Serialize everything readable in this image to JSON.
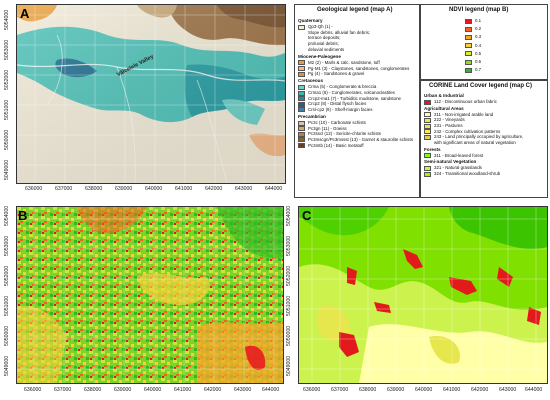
{
  "panels": {
    "a_letter": "A",
    "b_letter": "B",
    "c_letter": "C",
    "valley_label": "Vâlcelele Valley"
  },
  "axes": {
    "x_ticks": [
      "636000",
      "637000",
      "638000",
      "639000",
      "640000",
      "641000",
      "642000",
      "643000",
      "644000"
    ],
    "y_ticks": [
      "5049000",
      "5050000",
      "5051000",
      "5052000",
      "5053000",
      "5054000"
    ]
  },
  "geo_legend": {
    "title": "Geological legend (map A)",
    "sections": [
      {
        "name": "Quaternary",
        "items": [
          {
            "color": "#f5ebd6",
            "label": "Qp3-Qh (1) -"
          },
          {
            "color": "",
            "label": "Slope debris, alluvial fan debris;"
          },
          {
            "color": "",
            "label": "terrace deposits;"
          },
          {
            "color": "",
            "label": "proluvial debris;"
          },
          {
            "color": "",
            "label": "deluvial sediments"
          }
        ]
      },
      {
        "name": "Miocene-Paleogene",
        "items": [
          {
            "color": "#e8a03c",
            "label": "M2 (2) - Marls & calc. sandstone, tuff"
          },
          {
            "color": "#f2b98a",
            "label": "Pg-M1 (3) - Claystones, sandstones, conglomerates"
          },
          {
            "color": "#e8903a",
            "label": "Pg (4) - Sandstones & gravel"
          }
        ]
      },
      {
        "name": "Cretaceous",
        "items": [
          {
            "color": "#6fd0c8",
            "label": "Crma (5) - Conglomerate & breccia"
          },
          {
            "color": "#3ab7b0",
            "label": "Crma1 (6) - Conglomerates, volcanoclastites"
          },
          {
            "color": "#1f8f9b",
            "label": "Crcp2-ma1 (7) - Turbiditic mudstone, sandstone"
          },
          {
            "color": "#2a5f8a",
            "label": "Crcp2 (8) - Distal flysch facies"
          },
          {
            "color": "#3d7fb0",
            "label": "Crsl-cp2 (9) - Shelf-margin facies"
          }
        ]
      },
      {
        "name": "Precambrian",
        "items": [
          {
            "color": "#d9c7a3",
            "label": "Pc3c (10) - Carbonate schists"
          },
          {
            "color": "#c8a97a",
            "label": "Pc3gn (11) - Gneiss"
          },
          {
            "color": "#b0834f",
            "label": "Pc3sscl (12) - Sericite-chlorite schists"
          },
          {
            "color": "#8a6036",
            "label": "Pc3mscgn/Pc3mssst (13) - Garnet & staurolite schists"
          },
          {
            "color": "#6b3f22",
            "label": "Pc3mtb (14) - Basic metatuff"
          }
        ]
      }
    ]
  },
  "ndvi_legend": {
    "title": "NDVI legend (map B)",
    "items": [
      {
        "color": "#e8141e",
        "label": "0.1"
      },
      {
        "color": "#f2621f",
        "label": "0.2"
      },
      {
        "color": "#f7a428",
        "label": "0.3"
      },
      {
        "color": "#f5d23a",
        "label": "0.4"
      },
      {
        "color": "#d8ec3a",
        "label": "0.5"
      },
      {
        "color": "#8fdc2e",
        "label": "0.6"
      },
      {
        "color": "#2fba24",
        "label": "0.7"
      }
    ]
  },
  "corine_legend": {
    "title": "CORINE Land Cover legend (map C)",
    "sections": [
      {
        "name": "Urban & Industrial",
        "items": [
          {
            "color": "#e31a1c",
            "label": "112 - Discontinuous urban fabric"
          }
        ]
      },
      {
        "name": "Agricultural Areas",
        "items": [
          {
            "color": "#ffffa8",
            "label": "211 - Non-irrigated arable land"
          },
          {
            "color": "#e6e64d",
            "label": "222 - Vineyards"
          },
          {
            "color": "#e6e64d",
            "label": "231 - Pastures"
          },
          {
            "color": "#ffe64d",
            "label": "242 - Complex cultivation patterns"
          },
          {
            "color": "#e6cc4d",
            "label": "243 - Land principally occupied by agriculture,"
          },
          {
            "color": "",
            "label": "with significant areas of natural vegetation"
          }
        ]
      },
      {
        "name": "Forests",
        "items": [
          {
            "color": "#80ff00",
            "label": "311 - Broad-leaved forest"
          }
        ]
      },
      {
        "name": "Semi-natural Vegetation",
        "items": [
          {
            "color": "#ccf24d",
            "label": "321 - Natural grasslands"
          },
          {
            "color": "#a6f200",
            "label": "324 - Transitional woodland-shrub"
          }
        ]
      }
    ]
  }
}
